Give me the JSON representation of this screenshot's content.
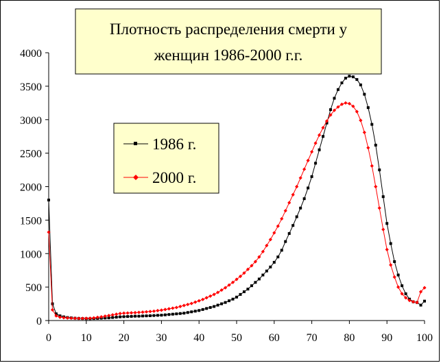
{
  "chart_data": {
    "type": "line",
    "title": [
      "Плотность распределения смерти у",
      "женщин 1986-2000 г.г."
    ],
    "xlim": [
      0,
      100
    ],
    "ylim": [
      0,
      4000
    ],
    "x_ticks": [
      "0",
      "10",
      "20",
      "30",
      "40",
      "50",
      "60",
      "70",
      "80",
      "90",
      "100"
    ],
    "y_ticks": [
      "0",
      "500",
      "1000",
      "1500",
      "2000",
      "2500",
      "3000",
      "3500",
      "4000"
    ],
    "grid": false,
    "legend_position": "left",
    "series": [
      {
        "name": "1986 г.",
        "color": "#000000",
        "marker": "square",
        "points": [
          [
            0,
            1800
          ],
          [
            1,
            250
          ],
          [
            2,
            100
          ],
          [
            3,
            70
          ],
          [
            4,
            55
          ],
          [
            5,
            45
          ],
          [
            6,
            40
          ],
          [
            7,
            35
          ],
          [
            8,
            32
          ],
          [
            9,
            30
          ],
          [
            10,
            28
          ],
          [
            11,
            28
          ],
          [
            12,
            30
          ],
          [
            13,
            32
          ],
          [
            14,
            35
          ],
          [
            15,
            38
          ],
          [
            16,
            40
          ],
          [
            17,
            45
          ],
          [
            18,
            50
          ],
          [
            19,
            55
          ],
          [
            20,
            58
          ],
          [
            21,
            60
          ],
          [
            22,
            62
          ],
          [
            23,
            65
          ],
          [
            24,
            65
          ],
          [
            25,
            68
          ],
          [
            26,
            70
          ],
          [
            27,
            72
          ],
          [
            28,
            75
          ],
          [
            29,
            78
          ],
          [
            30,
            80
          ],
          [
            31,
            85
          ],
          [
            32,
            90
          ],
          [
            33,
            95
          ],
          [
            34,
            100
          ],
          [
            35,
            105
          ],
          [
            36,
            110
          ],
          [
            37,
            120
          ],
          [
            38,
            130
          ],
          [
            39,
            140
          ],
          [
            40,
            150
          ],
          [
            41,
            165
          ],
          [
            42,
            180
          ],
          [
            43,
            195
          ],
          [
            44,
            210
          ],
          [
            45,
            230
          ],
          [
            46,
            250
          ],
          [
            47,
            270
          ],
          [
            48,
            295
          ],
          [
            49,
            320
          ],
          [
            50,
            350
          ],
          [
            51,
            390
          ],
          [
            52,
            430
          ],
          [
            53,
            470
          ],
          [
            54,
            520
          ],
          [
            55,
            570
          ],
          [
            56,
            620
          ],
          [
            57,
            680
          ],
          [
            58,
            740
          ],
          [
            59,
            800
          ],
          [
            60,
            870
          ],
          [
            61,
            950
          ],
          [
            62,
            1050
          ],
          [
            63,
            1180
          ],
          [
            64,
            1300
          ],
          [
            65,
            1420
          ],
          [
            66,
            1550
          ],
          [
            67,
            1680
          ],
          [
            68,
            1820
          ],
          [
            69,
            1980
          ],
          [
            70,
            2150
          ],
          [
            71,
            2350
          ],
          [
            72,
            2550
          ],
          [
            73,
            2750
          ],
          [
            74,
            2950
          ],
          [
            75,
            3150
          ],
          [
            76,
            3320
          ],
          [
            77,
            3450
          ],
          [
            78,
            3550
          ],
          [
            79,
            3620
          ],
          [
            80,
            3650
          ],
          [
            81,
            3640
          ],
          [
            82,
            3600
          ],
          [
            83,
            3520
          ],
          [
            84,
            3380
          ],
          [
            85,
            3180
          ],
          [
            86,
            2930
          ],
          [
            87,
            2620
          ],
          [
            88,
            2250
          ],
          [
            89,
            1850
          ],
          [
            90,
            1450
          ],
          [
            91,
            1150
          ],
          [
            92,
            880
          ],
          [
            93,
            680
          ],
          [
            94,
            520
          ],
          [
            95,
            400
          ],
          [
            96,
            320
          ],
          [
            97,
            280
          ],
          [
            98,
            270
          ],
          [
            99,
            230
          ],
          [
            100,
            290
          ]
        ]
      },
      {
        "name": "2000 г.",
        "color": "#ff0000",
        "marker": "diamond",
        "points": [
          [
            0,
            1320
          ],
          [
            1,
            160
          ],
          [
            2,
            70
          ],
          [
            3,
            50
          ],
          [
            4,
            42
          ],
          [
            5,
            38
          ],
          [
            6,
            35
          ],
          [
            7,
            33
          ],
          [
            8,
            32
          ],
          [
            9,
            32
          ],
          [
            10,
            33
          ],
          [
            11,
            35
          ],
          [
            12,
            40
          ],
          [
            13,
            48
          ],
          [
            14,
            55
          ],
          [
            15,
            65
          ],
          [
            16,
            75
          ],
          [
            17,
            85
          ],
          [
            18,
            95
          ],
          [
            19,
            105
          ],
          [
            20,
            110
          ],
          [
            21,
            112
          ],
          [
            22,
            115
          ],
          [
            23,
            118
          ],
          [
            24,
            122
          ],
          [
            25,
            125
          ],
          [
            26,
            130
          ],
          [
            27,
            135
          ],
          [
            28,
            140
          ],
          [
            29,
            148
          ],
          [
            30,
            155
          ],
          [
            31,
            165
          ],
          [
            32,
            175
          ],
          [
            33,
            185
          ],
          [
            34,
            195
          ],
          [
            35,
            210
          ],
          [
            36,
            225
          ],
          [
            37,
            240
          ],
          [
            38,
            255
          ],
          [
            39,
            275
          ],
          [
            40,
            295
          ],
          [
            41,
            315
          ],
          [
            42,
            340
          ],
          [
            43,
            365
          ],
          [
            44,
            390
          ],
          [
            45,
            420
          ],
          [
            46,
            455
          ],
          [
            47,
            490
          ],
          [
            48,
            530
          ],
          [
            49,
            570
          ],
          [
            50,
            615
          ],
          [
            51,
            660
          ],
          [
            52,
            710
          ],
          [
            53,
            765
          ],
          [
            54,
            820
          ],
          [
            55,
            880
          ],
          [
            56,
            950
          ],
          [
            57,
            1030
          ],
          [
            58,
            1120
          ],
          [
            59,
            1210
          ],
          [
            60,
            1310
          ],
          [
            61,
            1410
          ],
          [
            62,
            1520
          ],
          [
            63,
            1640
          ],
          [
            64,
            1760
          ],
          [
            65,
            1880
          ],
          [
            66,
            2000
          ],
          [
            67,
            2130
          ],
          [
            68,
            2260
          ],
          [
            69,
            2390
          ],
          [
            70,
            2520
          ],
          [
            71,
            2650
          ],
          [
            72,
            2770
          ],
          [
            73,
            2880
          ],
          [
            74,
            2980
          ],
          [
            75,
            3070
          ],
          [
            76,
            3140
          ],
          [
            77,
            3190
          ],
          [
            78,
            3230
          ],
          [
            79,
            3250
          ],
          [
            80,
            3240
          ],
          [
            81,
            3200
          ],
          [
            82,
            3120
          ],
          [
            83,
            2990
          ],
          [
            84,
            2810
          ],
          [
            85,
            2580
          ],
          [
            86,
            2310
          ],
          [
            87,
            2000
          ],
          [
            88,
            1680
          ],
          [
            89,
            1360
          ],
          [
            90,
            1060
          ],
          [
            91,
            830
          ],
          [
            92,
            650
          ],
          [
            93,
            500
          ],
          [
            94,
            400
          ],
          [
            95,
            340
          ],
          [
            96,
            300
          ],
          [
            97,
            280
          ],
          [
            98,
            270
          ],
          [
            99,
            430
          ],
          [
            100,
            490
          ]
        ]
      }
    ]
  }
}
